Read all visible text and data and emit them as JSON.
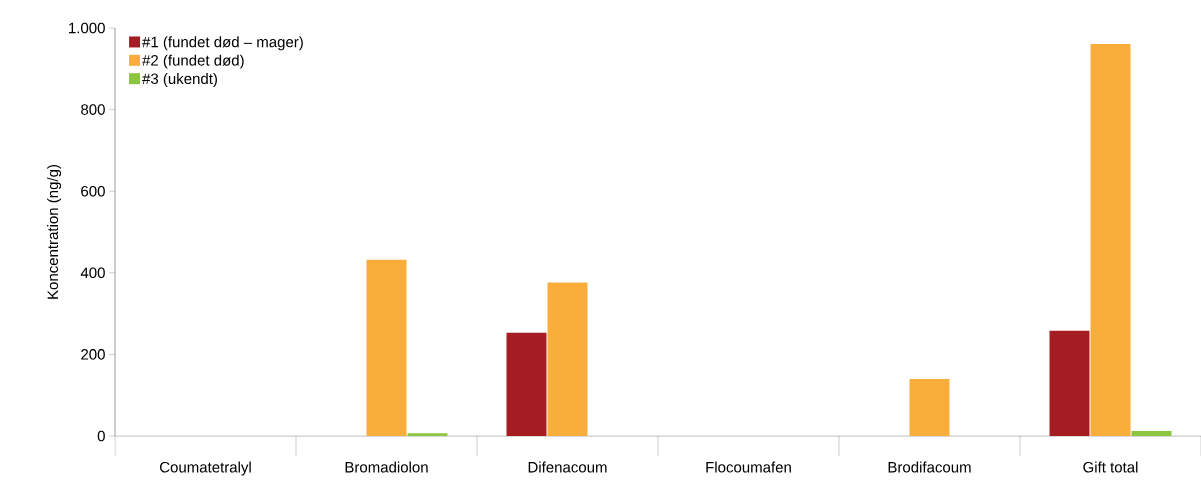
{
  "chart_data": {
    "type": "bar",
    "ylabel": "Koncentration (ng/g)",
    "categories": [
      "Coumatetralyl",
      "Bromadiolon",
      "Difenacoum",
      "Flocoumafen",
      "Brodifacoum",
      "Gift total"
    ],
    "series": [
      {
        "name": "#1 (fundet død – mager)",
        "color": "#a51d23",
        "values": [
          0,
          0,
          253,
          0,
          0,
          258
        ]
      },
      {
        "name": "#2 (fundet død)",
        "color": "#f9ae3b",
        "values": [
          0,
          432,
          376,
          0,
          140,
          961
        ]
      },
      {
        "name": "#3 (ukendt)",
        "color": "#8cc540",
        "values": [
          0,
          7,
          null,
          0,
          0,
          12
        ]
      }
    ],
    "ylim": [
      0,
      1000
    ],
    "yticks": [
      0,
      200,
      400,
      600,
      800,
      {
        "value": 1000,
        "label": "1.000"
      }
    ],
    "grid": false,
    "legend": "top left"
  }
}
